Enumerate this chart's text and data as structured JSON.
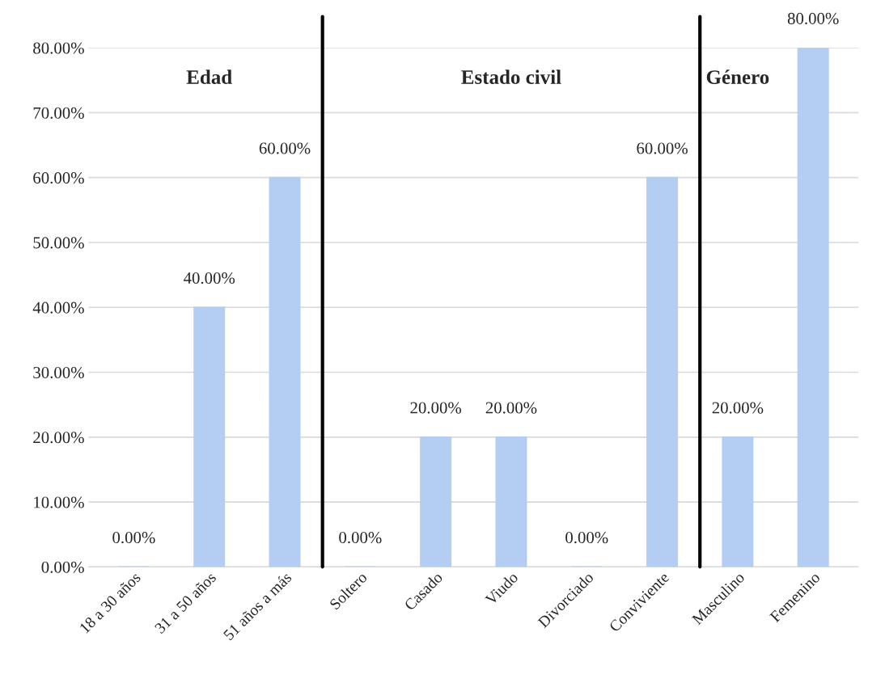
{
  "chart_data": {
    "type": "bar",
    "categories": [
      "18 a 30 años",
      "31 a 50 años",
      "51 años a más",
      "Soltero",
      "Casado",
      "Viudo",
      "Divorciado",
      "Conviviente",
      "Masculino",
      "Femenino"
    ],
    "values": [
      0,
      40,
      60,
      0,
      20,
      20,
      0,
      60,
      20,
      80
    ],
    "value_labels": [
      "0.00%",
      "40.00%",
      "60.00%",
      "0.00%",
      "20.00%",
      "20.00%",
      "0.00%",
      "60.00%",
      "20.00%",
      "80.00%"
    ],
    "color": "#b4cdf2",
    "ylim": [
      0,
      80
    ],
    "yticks": [
      {
        "value": 0,
        "label": "0.00%"
      },
      {
        "value": 10,
        "label": "10.00%"
      },
      {
        "value": 20,
        "label": "20.00%"
      },
      {
        "value": 30,
        "label": "30.00%"
      },
      {
        "value": 40,
        "label": "40.00%"
      },
      {
        "value": 50,
        "label": "50.00%"
      },
      {
        "value": 60,
        "label": "60.00%"
      },
      {
        "value": 70,
        "label": "70.00%"
      },
      {
        "value": 80,
        "label": "80.00%"
      }
    ],
    "grid": "y",
    "annotations": [
      "Edad",
      "Estado civil",
      "Género"
    ]
  }
}
